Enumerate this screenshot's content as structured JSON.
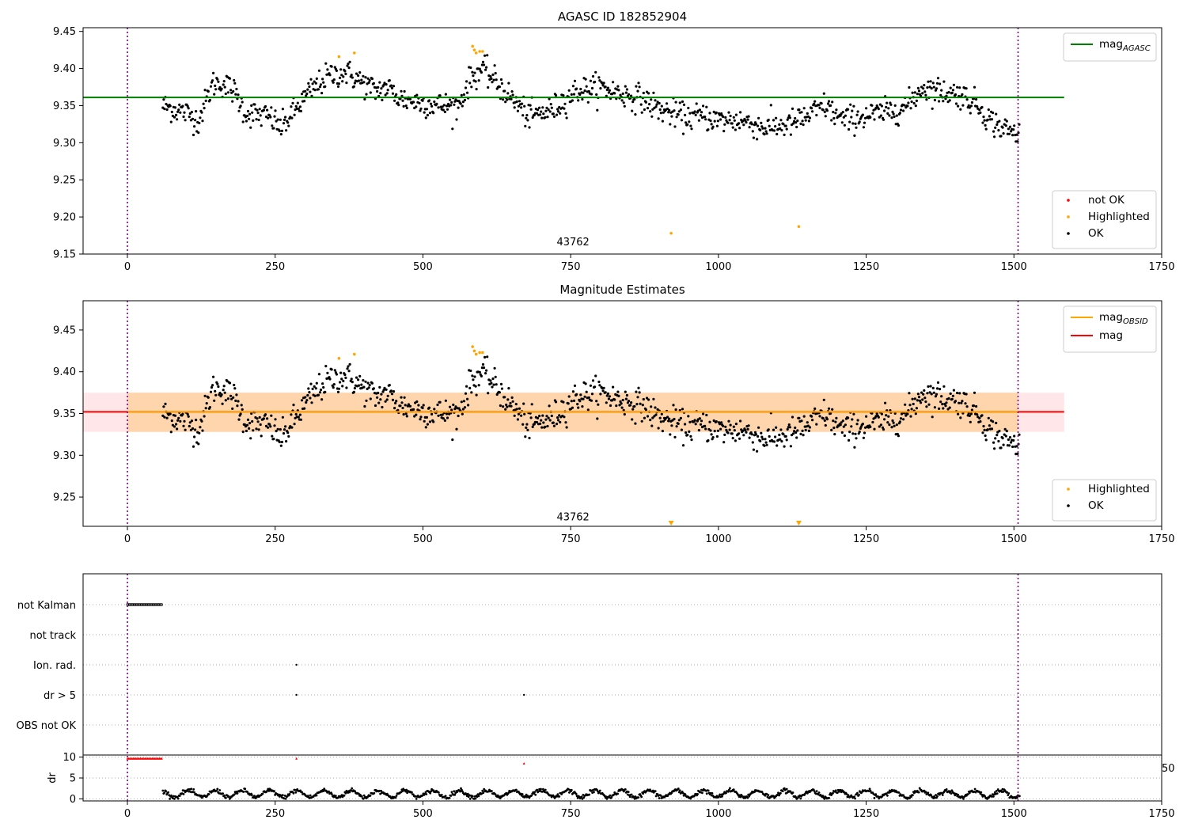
{
  "chart_data": [
    {
      "type": "scatter",
      "title": "AGASC ID 182852904",
      "xlim": [
        -75,
        1750
      ],
      "ylim": [
        9.15,
        9.455
      ],
      "xticks": [
        0,
        250,
        500,
        750,
        1000,
        1250,
        1500,
        1750
      ],
      "yticks": [
        9.15,
        9.2,
        9.25,
        9.3,
        9.35,
        9.4,
        9.45
      ],
      "vlines": [
        0,
        1507
      ],
      "annotation": {
        "text": "43762",
        "x": 754,
        "y": 9.166
      },
      "lines": [
        {
          "name": "mag",
          "sub": "AGASC",
          "color": "#008000",
          "y": 9.361,
          "x": [
            -75,
            1585
          ]
        }
      ],
      "legend_lines": {
        "position": "top-right",
        "entries": [
          {
            "name": "mag",
            "sub": "AGASC",
            "color": "#008000"
          }
        ]
      },
      "legend_points": {
        "position": "bottom-right",
        "entries": [
          {
            "name": "not OK",
            "color": "#ff0000"
          },
          {
            "name": "Highlighted",
            "color": "#ffa500"
          },
          {
            "name": "OK",
            "color": "#000000"
          }
        ]
      },
      "series": [
        {
          "name": "OK",
          "color": "#000000",
          "x_range": [
            60,
            1510
          ]
        },
        {
          "name": "Highlighted",
          "color": "#ffa500",
          "points": [
            [
              358,
              9.416
            ],
            [
              384,
              9.421
            ],
            [
              584,
              9.43
            ],
            [
              587,
              9.425
            ],
            [
              590,
              9.421
            ],
            [
              596,
              9.423
            ],
            [
              601,
              9.423
            ],
            [
              920,
              9.178
            ],
            [
              1136,
              9.187
            ]
          ]
        }
      ],
      "trend": [
        [
          60,
          9.35
        ],
        [
          100,
          9.34
        ],
        [
          120,
          9.33
        ],
        [
          145,
          9.38
        ],
        [
          160,
          9.38
        ],
        [
          180,
          9.37
        ],
        [
          200,
          9.34
        ],
        [
          240,
          9.335
        ],
        [
          260,
          9.32
        ],
        [
          285,
          9.345
        ],
        [
          310,
          9.37
        ],
        [
          340,
          9.39
        ],
        [
          370,
          9.395
        ],
        [
          400,
          9.38
        ],
        [
          420,
          9.37
        ],
        [
          440,
          9.375
        ],
        [
          460,
          9.36
        ],
        [
          490,
          9.355
        ],
        [
          530,
          9.35
        ],
        [
          560,
          9.35
        ],
        [
          580,
          9.385
        ],
        [
          600,
          9.4
        ],
        [
          620,
          9.385
        ],
        [
          650,
          9.36
        ],
        [
          680,
          9.335
        ],
        [
          720,
          9.345
        ],
        [
          760,
          9.37
        ],
        [
          800,
          9.375
        ],
        [
          840,
          9.365
        ],
        [
          870,
          9.36
        ],
        [
          900,
          9.345
        ],
        [
          940,
          9.335
        ],
        [
          980,
          9.335
        ],
        [
          1000,
          9.33
        ],
        [
          1040,
          9.33
        ],
        [
          1080,
          9.32
        ],
        [
          1120,
          9.325
        ],
        [
          1150,
          9.335
        ],
        [
          1180,
          9.35
        ],
        [
          1210,
          9.33
        ],
        [
          1240,
          9.335
        ],
        [
          1280,
          9.34
        ],
        [
          1320,
          9.35
        ],
        [
          1345,
          9.375
        ],
        [
          1370,
          9.37
        ],
        [
          1410,
          9.365
        ],
        [
          1440,
          9.35
        ],
        [
          1460,
          9.33
        ],
        [
          1480,
          9.32
        ],
        [
          1510,
          9.31
        ]
      ]
    },
    {
      "type": "scatter",
      "title": "Magnitude Estimates",
      "xlim": [
        -75,
        1750
      ],
      "ylim": [
        9.215,
        9.485
      ],
      "xticks": [
        0,
        250,
        500,
        750,
        1000,
        1250,
        1500,
        1750
      ],
      "yticks": [
        9.25,
        9.3,
        9.35,
        9.4,
        9.45
      ],
      "vlines": [
        0,
        1507
      ],
      "annotation": {
        "text": "43762",
        "x": 754,
        "y": 9.226
      },
      "bands": [
        {
          "color": "#ffb6c1",
          "alpha": 0.35,
          "x": [
            -75,
            1585
          ],
          "y": [
            9.328,
            9.375
          ]
        },
        {
          "color": "#ffa500",
          "alpha": 0.25,
          "x": [
            0,
            1507
          ],
          "y": [
            9.328,
            9.375
          ]
        }
      ],
      "lines": [
        {
          "name": "mag",
          "color": "#ff0000",
          "y": 9.352,
          "x": [
            -75,
            1585
          ]
        },
        {
          "name": "mag",
          "sub": "OBSID",
          "color": "#ffa500",
          "y": 9.352,
          "x": [
            0,
            1507
          ]
        }
      ],
      "legend_lines": {
        "position": "top-right",
        "entries": [
          {
            "name": "mag",
            "sub": "OBSID",
            "color": "#ffa500"
          },
          {
            "name": "mag",
            "color": "#ff0000"
          }
        ]
      },
      "legend_points": {
        "position": "bottom-right",
        "entries": [
          {
            "name": "Highlighted",
            "color": "#ffa500"
          },
          {
            "name": "OK",
            "color": "#000000"
          }
        ]
      },
      "series": [
        {
          "name": "OK",
          "color": "#000000",
          "x_range": [
            60,
            1510
          ]
        },
        {
          "name": "Highlighted",
          "color": "#ffa500",
          "points": [
            [
              358,
              9.416
            ],
            [
              384,
              9.421
            ],
            [
              584,
              9.43
            ],
            [
              587,
              9.425
            ],
            [
              590,
              9.421
            ],
            [
              596,
              9.423
            ],
            [
              601,
              9.423
            ]
          ]
        }
      ],
      "out_of_range_markers": [
        [
          920,
          9.22
        ],
        [
          1136,
          9.22
        ]
      ]
    },
    {
      "type": "scatter",
      "xlim": [
        -75,
        1750
      ],
      "xticks": [
        0,
        250,
        500,
        750,
        1000,
        1250,
        1500,
        1750
      ],
      "vlines": [
        0,
        1507
      ],
      "flag_rows": [
        "not Kalman",
        "not track",
        "Ion. rad.",
        "dr > 5",
        "OBS not OK"
      ],
      "flags": [
        {
          "row": "not Kalman",
          "x_range": [
            0,
            58
          ]
        },
        {
          "row": "Ion. rad.",
          "x": [
            286
          ]
        },
        {
          "row": "dr > 5",
          "x": [
            286,
            671
          ]
        }
      ],
      "dr_panel": {
        "ylabel": "dr",
        "ylim": [
          -0.5,
          10.5
        ],
        "yticks": [
          0,
          5,
          10
        ],
        "right_label": "50",
        "clipped": [
          {
            "x_range": [
              0,
              58
            ],
            "y": 9.7
          },
          {
            "x": 286,
            "y": 9.7
          },
          {
            "x": 671,
            "y": 8.5
          }
        ],
        "dr_x_range": [
          60,
          1510
        ]
      }
    }
  ]
}
